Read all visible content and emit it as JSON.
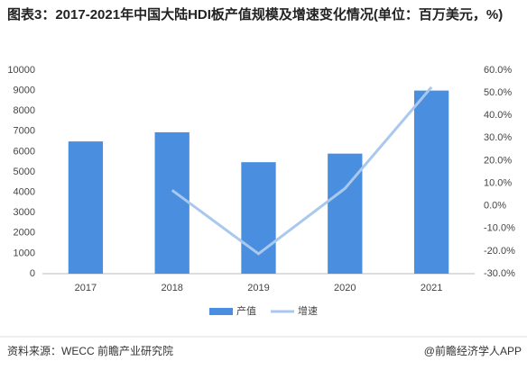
{
  "chart_data": {
    "type": "bar",
    "title": "图表3：2017-2021年中国大陆HDI板产值规模及增速变化情况(单位：百万美元，%)",
    "categories": [
      "2017",
      "2018",
      "2019",
      "2020",
      "2021"
    ],
    "series": [
      {
        "name": "产值",
        "type": "bar",
        "color": "#4a8fdf",
        "values": [
          6500,
          6950,
          5480,
          5900,
          9000
        ]
      },
      {
        "name": "增速",
        "type": "line",
        "axis": "y2",
        "color": "#a9c8ee",
        "values": [
          null,
          6.9,
          -21.2,
          7.7,
          52.5
        ]
      }
    ],
    "ylim": [
      0,
      10000
    ],
    "yticks": [
      0,
      1000,
      2000,
      3000,
      4000,
      5000,
      6000,
      7000,
      8000,
      9000,
      10000
    ],
    "y2lim": [
      -30,
      60
    ],
    "y2ticks": [
      {
        "value": -30,
        "label": "-30.0%"
      },
      {
        "value": -20,
        "label": "-20.0%"
      },
      {
        "value": -10,
        "label": "-10.0%"
      },
      {
        "value": 0,
        "label": "0.0%"
      },
      {
        "value": 10,
        "label": "10.0%"
      },
      {
        "value": 20,
        "label": "20.0%"
      },
      {
        "value": 30,
        "label": "30.0%"
      },
      {
        "value": 40,
        "label": "40.0%"
      },
      {
        "value": 50,
        "label": "50.0%"
      },
      {
        "value": 60,
        "label": "60.0%"
      }
    ],
    "legend": "bottom"
  },
  "footer": {
    "source": "资料来源：WECC 前瞻产业研究院",
    "credit": "@前瞻经济学人APP"
  }
}
